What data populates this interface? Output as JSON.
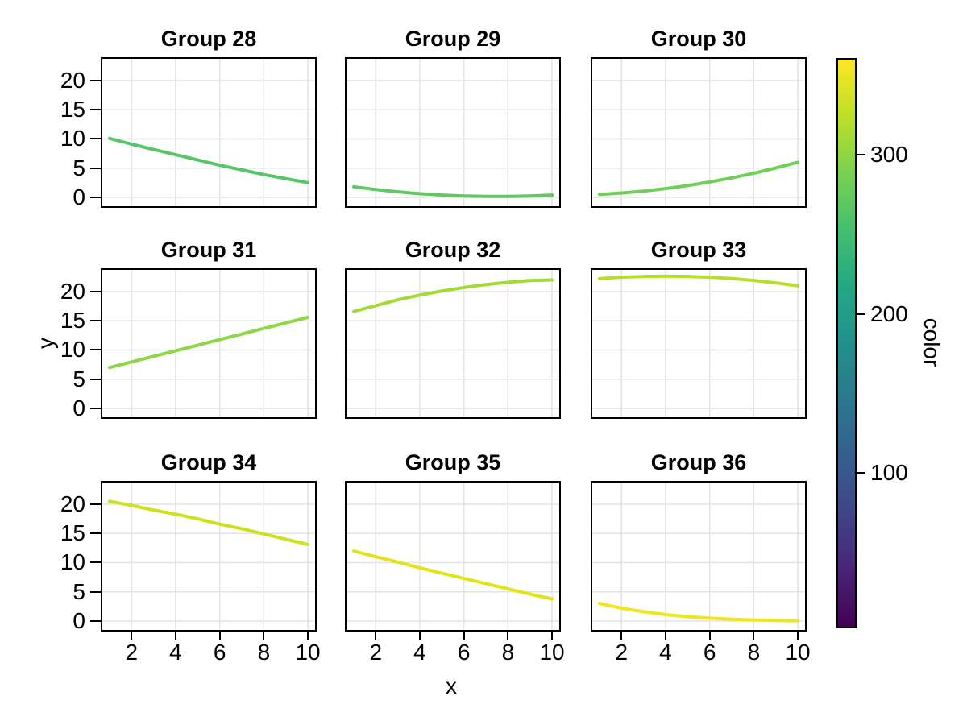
{
  "figure": {
    "xlabel": "x",
    "ylabel": "y"
  },
  "chart_data": {
    "type": "line",
    "layout": "3x3-facet-grid",
    "title": "",
    "xlabel": "x",
    "ylabel": "y",
    "x": [
      1,
      2,
      3,
      4,
      5,
      6,
      7,
      8,
      9,
      10
    ],
    "xlim": [
      0.6,
      10.4
    ],
    "ylim": [
      -1.8,
      24.0
    ],
    "xticks": [
      2,
      4,
      6,
      8,
      10
    ],
    "yticks": [
      0,
      5,
      10,
      15,
      20
    ],
    "grid": true,
    "grid_color": "#e3e3e3",
    "facets": [
      {
        "label": "Group 28",
        "line_color": "#56c667",
        "y": [
          10.1,
          9.1,
          8.2,
          7.3,
          6.4,
          5.5,
          4.7,
          3.9,
          3.2,
          2.5
        ]
      },
      {
        "label": "Group 29",
        "line_color": "#5ec962",
        "y": [
          1.8,
          1.33,
          0.94,
          0.63,
          0.39,
          0.24,
          0.16,
          0.16,
          0.24,
          0.39
        ]
      },
      {
        "label": "Group 30",
        "line_color": "#70cf57",
        "y": [
          0.5,
          0.74,
          1.07,
          1.49,
          2.01,
          2.63,
          3.33,
          4.13,
          5.03,
          6.0
        ]
      },
      {
        "label": "Group 31",
        "line_color": "#8ed645",
        "y": [
          7.0,
          7.96,
          8.91,
          9.87,
          10.82,
          11.78,
          12.73,
          13.69,
          14.64,
          15.6
        ]
      },
      {
        "label": "Group 32",
        "line_color": "#a3da36",
        "y": [
          16.6,
          17.6,
          18.6,
          19.4,
          20.1,
          20.7,
          21.2,
          21.6,
          21.9,
          22.0
        ]
      },
      {
        "label": "Group 33",
        "line_color": "#b8de29",
        "y": [
          22.24,
          22.47,
          22.6,
          22.65,
          22.6,
          22.47,
          22.24,
          21.92,
          21.5,
          21.0
        ]
      },
      {
        "label": "Group 34",
        "line_color": "#cde11d",
        "y": [
          20.5,
          19.8,
          19.0,
          18.3,
          17.5,
          16.6,
          15.8,
          14.9,
          14.0,
          13.1
        ]
      },
      {
        "label": "Group 35",
        "line_color": "#e2e418",
        "y": [
          12.0,
          11.0,
          10.1,
          9.1,
          8.2,
          7.3,
          6.4,
          5.5,
          4.6,
          3.8
        ]
      },
      {
        "label": "Group 36",
        "line_color": "#f1e51b",
        "y": [
          3.0,
          2.2,
          1.6,
          1.1,
          0.75,
          0.5,
          0.3,
          0.18,
          0.1,
          0.05
        ]
      }
    ],
    "colorbar": {
      "label": "color",
      "ticks": [
        100,
        200,
        300
      ],
      "limits": [
        2,
        361
      ],
      "colormap": "viridis",
      "gradient_stops_low_to_high": [
        "#440154",
        "#482475",
        "#414487",
        "#355f8d",
        "#2a788e",
        "#21918c",
        "#22a884",
        "#44bf70",
        "#7ad151",
        "#bddf26",
        "#fde725"
      ]
    }
  }
}
